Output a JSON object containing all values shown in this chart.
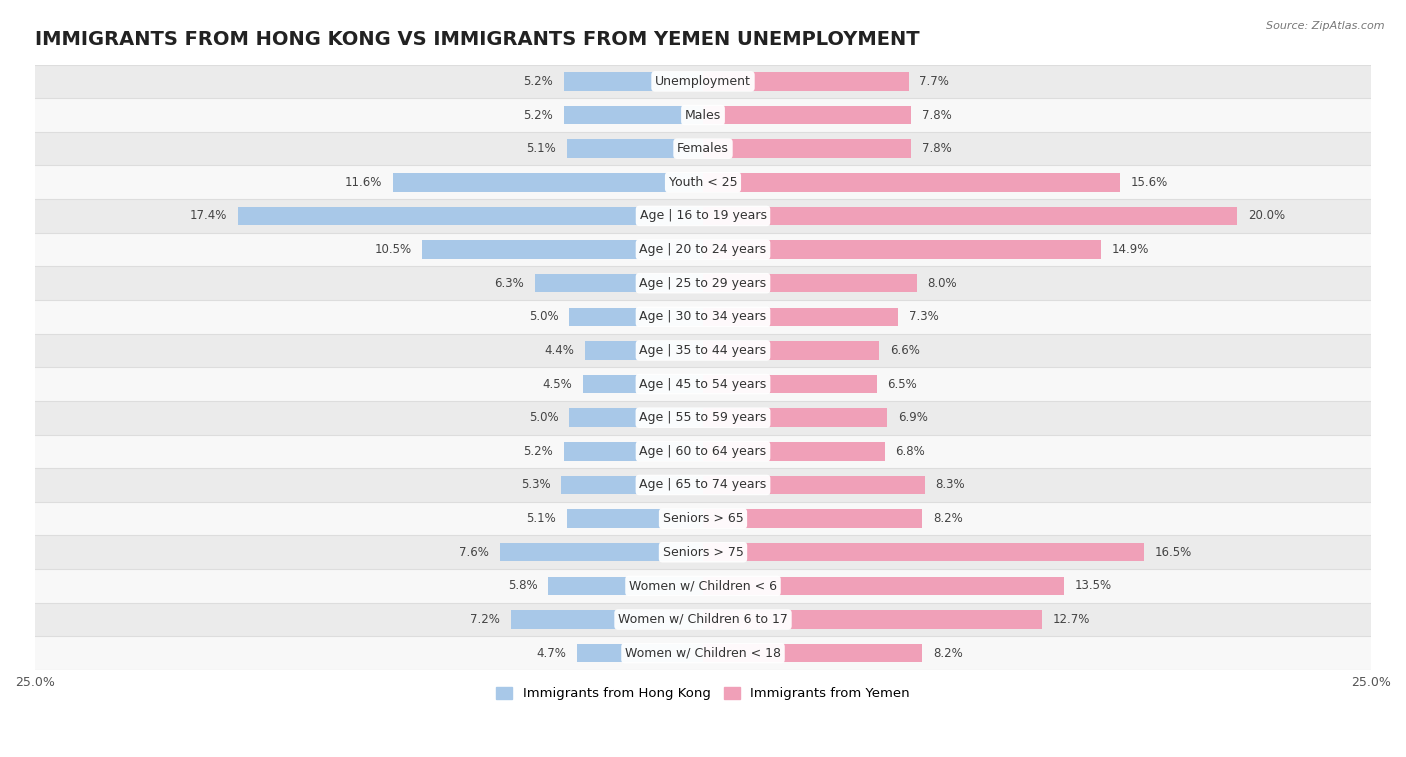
{
  "title": "IMMIGRANTS FROM HONG KONG VS IMMIGRANTS FROM YEMEN UNEMPLOYMENT",
  "source": "Source: ZipAtlas.com",
  "categories": [
    "Unemployment",
    "Males",
    "Females",
    "Youth < 25",
    "Age | 16 to 19 years",
    "Age | 20 to 24 years",
    "Age | 25 to 29 years",
    "Age | 30 to 34 years",
    "Age | 35 to 44 years",
    "Age | 45 to 54 years",
    "Age | 55 to 59 years",
    "Age | 60 to 64 years",
    "Age | 65 to 74 years",
    "Seniors > 65",
    "Seniors > 75",
    "Women w/ Children < 6",
    "Women w/ Children 6 to 17",
    "Women w/ Children < 18"
  ],
  "hong_kong_values": [
    5.2,
    5.2,
    5.1,
    11.6,
    17.4,
    10.5,
    6.3,
    5.0,
    4.4,
    4.5,
    5.0,
    5.2,
    5.3,
    5.1,
    7.6,
    5.8,
    7.2,
    4.7
  ],
  "yemen_values": [
    7.7,
    7.8,
    7.8,
    15.6,
    20.0,
    14.9,
    8.0,
    7.3,
    6.6,
    6.5,
    6.9,
    6.8,
    8.3,
    8.2,
    16.5,
    13.5,
    12.7,
    8.2
  ],
  "hong_kong_color": "#a8c8e8",
  "yemen_color": "#f0a0b8",
  "background_row_odd": "#ebebeb",
  "background_row_even": "#f8f8f8",
  "separator_color": "#dddddd",
  "xlim_left": -25,
  "xlim_right": 25,
  "bar_height": 0.55,
  "title_fontsize": 14,
  "label_fontsize": 9,
  "value_fontsize": 8.5,
  "legend_label_hk": "Immigrants from Hong Kong",
  "legend_label_yemen": "Immigrants from Yemen"
}
